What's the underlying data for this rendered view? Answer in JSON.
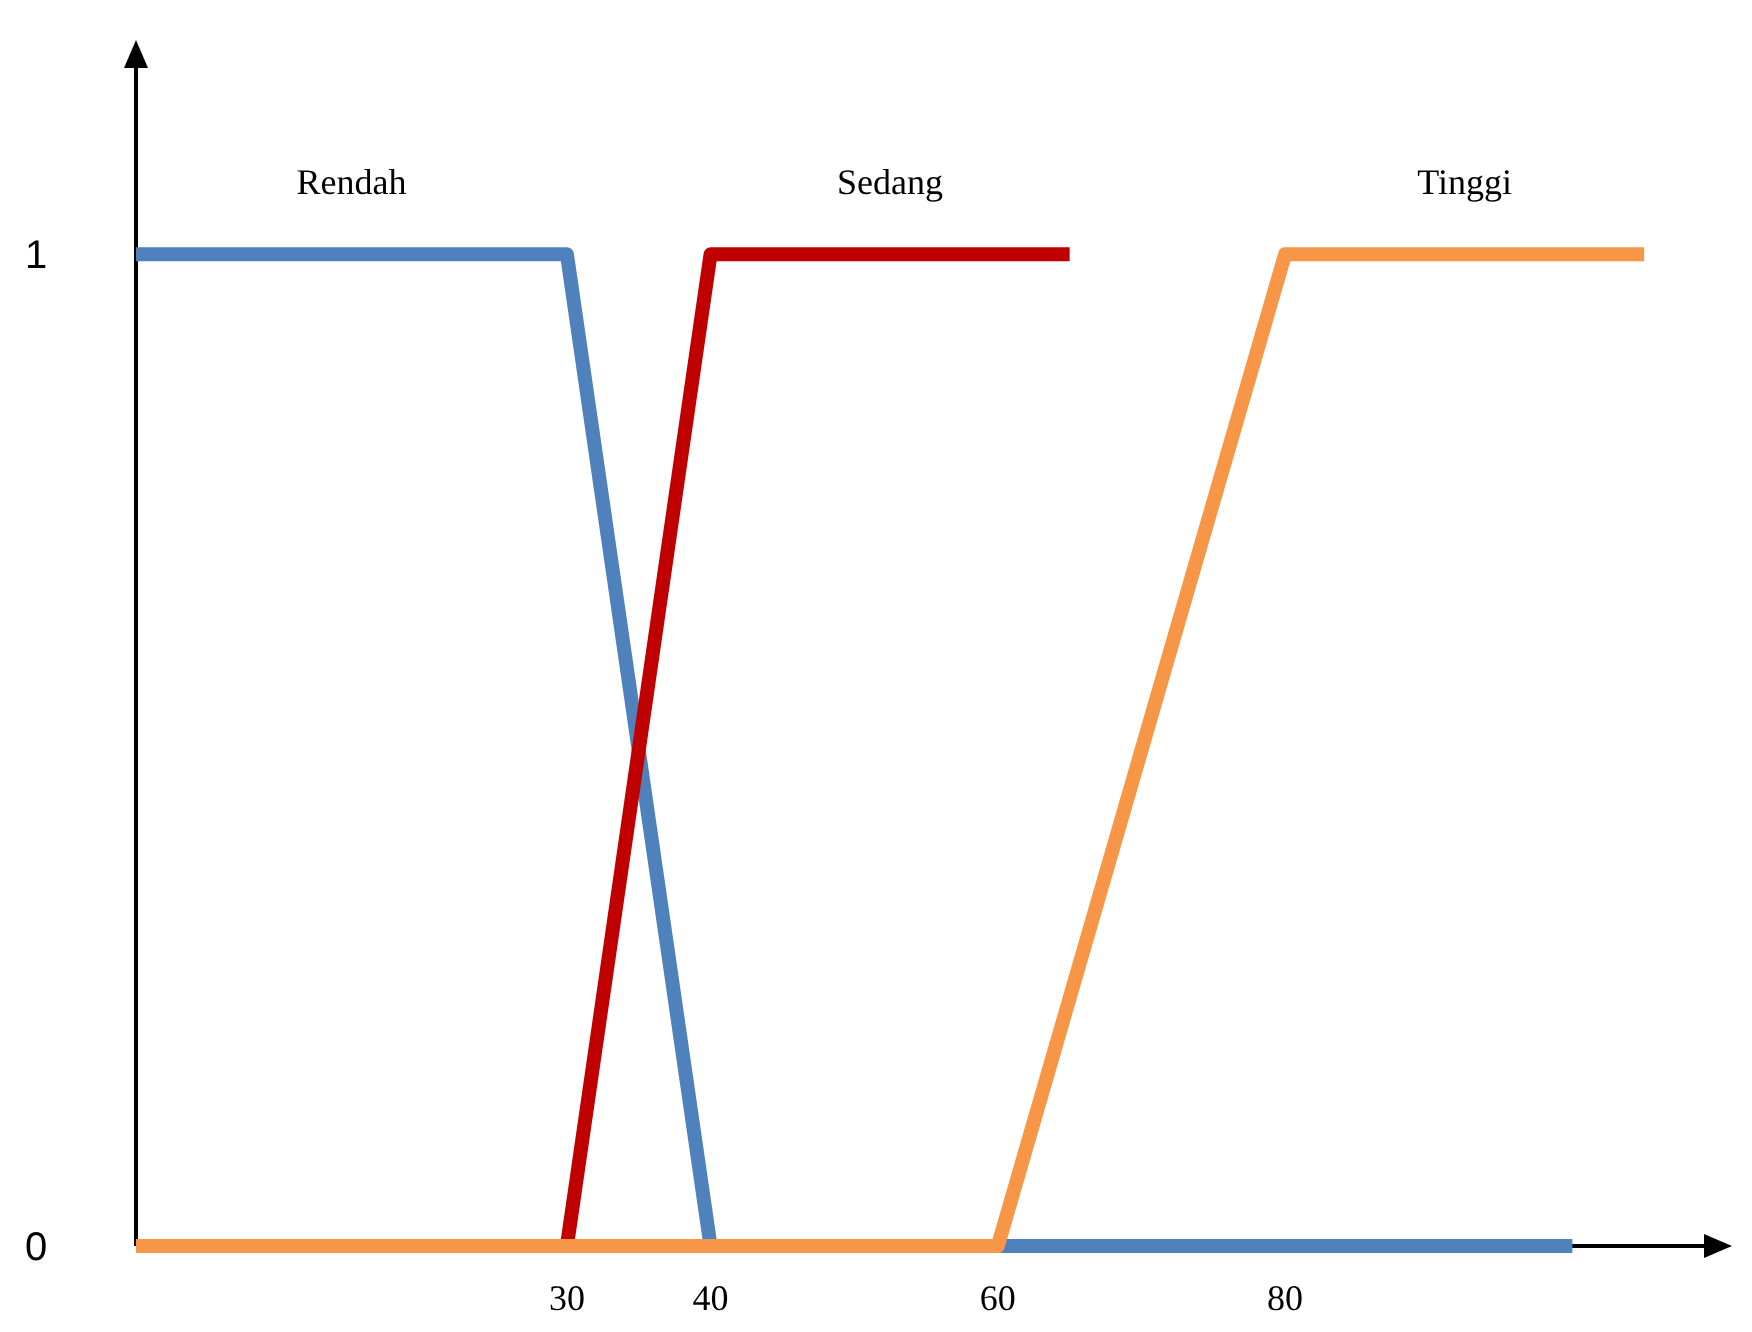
{
  "chart_data": {
    "type": "line",
    "xlim": [
      0,
      110
    ],
    "ylim": [
      0,
      1.2
    ],
    "xticks": [
      30,
      40,
      60,
      80
    ],
    "yticks": [
      0,
      1
    ],
    "grid": false,
    "line_style": "solid",
    "series": [
      {
        "name": "Rendah",
        "color": "#4f81bd",
        "x": [
          0,
          30,
          40,
          100
        ],
        "values": [
          1,
          1,
          0,
          0
        ]
      },
      {
        "name": "Sedang",
        "color": "#c00000",
        "x": [
          0,
          30,
          40,
          65
        ],
        "values": [
          0,
          0,
          1,
          1
        ]
      },
      {
        "name": "Tinggi",
        "color": "#f79646",
        "x": [
          0,
          60,
          80,
          105
        ],
        "values": [
          0,
          0,
          1,
          1
        ]
      }
    ]
  }
}
